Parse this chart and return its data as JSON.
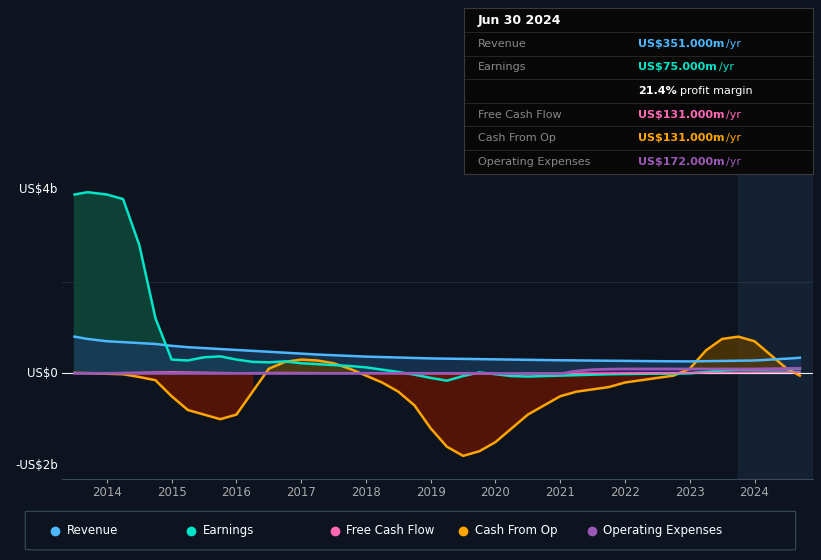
{
  "bg_color": "#0d1420",
  "plot_bg_color": "#0d1420",
  "grid_color": "#2a3a4a",
  "ylabel_top": "US$4b",
  "ylabel_zero": "US$0",
  "ylabel_bot": "-US$2b",
  "y_top": 4000,
  "y_zero": 0,
  "y_bot": -2000,
  "xlim": [
    2013.3,
    2024.9
  ],
  "ylim": [
    -2300,
    4600
  ],
  "xticks": [
    2014,
    2015,
    2016,
    2017,
    2018,
    2019,
    2020,
    2021,
    2022,
    2023,
    2024
  ],
  "revenue_color": "#4db8ff",
  "earnings_color": "#00e5c8",
  "fcf_color": "#ff69b4",
  "cashop_color": "#ffa500",
  "opex_color": "#9b59b6",
  "revenue_fill_color": "#1a3a5c",
  "earnings_fill_pos_color": "#0d4a3a",
  "earnings_fill_neg_color": "#5a1a1a",
  "cashop_fill_pos_color": "#5a3a00",
  "cashop_fill_neg_color": "#6b1500",
  "years": [
    2013.5,
    2013.7,
    2014.0,
    2014.25,
    2014.5,
    2014.75,
    2015.0,
    2015.25,
    2015.5,
    2015.75,
    2016.0,
    2016.25,
    2016.5,
    2016.75,
    2017.0,
    2017.25,
    2017.5,
    2017.75,
    2018.0,
    2018.25,
    2018.5,
    2018.75,
    2019.0,
    2019.25,
    2019.5,
    2019.75,
    2020.0,
    2020.25,
    2020.5,
    2020.75,
    2021.0,
    2021.25,
    2021.5,
    2021.75,
    2022.0,
    2022.25,
    2022.5,
    2022.75,
    2023.0,
    2023.25,
    2023.5,
    2023.75,
    2024.0,
    2024.25,
    2024.5,
    2024.7
  ],
  "revenue": [
    800,
    750,
    700,
    680,
    660,
    640,
    600,
    570,
    550,
    530,
    510,
    490,
    470,
    450,
    430,
    410,
    395,
    380,
    365,
    355,
    345,
    335,
    325,
    320,
    315,
    310,
    305,
    300,
    295,
    290,
    285,
    282,
    278,
    275,
    272,
    268,
    265,
    262,
    260,
    265,
    270,
    275,
    280,
    300,
    320,
    340
  ],
  "earnings": [
    3900,
    3950,
    3900,
    3800,
    2800,
    1200,
    300,
    280,
    350,
    370,
    300,
    250,
    240,
    260,
    220,
    200,
    180,
    160,
    130,
    80,
    30,
    -30,
    -100,
    -160,
    -60,
    20,
    -20,
    -60,
    -70,
    -60,
    -50,
    -40,
    -30,
    -20,
    -15,
    -10,
    -8,
    -5,
    0,
    30,
    60,
    80,
    80,
    85,
    90,
    95
  ],
  "fcf": [
    0,
    5,
    10,
    15,
    20,
    25,
    30,
    25,
    20,
    15,
    10,
    12,
    14,
    16,
    14,
    12,
    10,
    8,
    6,
    4,
    2,
    0,
    -2,
    -4,
    -6,
    -8,
    -10,
    -8,
    -6,
    -4,
    -2,
    0,
    2,
    4,
    6,
    8,
    10,
    12,
    14,
    16,
    18,
    20,
    22,
    25,
    28,
    30
  ],
  "cashop": [
    10,
    5,
    -10,
    -20,
    -80,
    -150,
    -500,
    -800,
    -900,
    -1000,
    -900,
    -400,
    100,
    250,
    300,
    280,
    220,
    100,
    -50,
    -200,
    -400,
    -700,
    -1200,
    -1600,
    -1800,
    -1700,
    -1500,
    -1200,
    -900,
    -700,
    -500,
    -400,
    -350,
    -300,
    -200,
    -150,
    -100,
    -50,
    100,
    500,
    750,
    800,
    700,
    400,
    100,
    -50
  ],
  "opex": [
    0,
    0,
    0,
    0,
    0,
    0,
    0,
    0,
    0,
    0,
    0,
    0,
    0,
    0,
    0,
    0,
    0,
    0,
    0,
    0,
    0,
    0,
    0,
    0,
    0,
    0,
    -5,
    -5,
    -5,
    -5,
    -10,
    50,
    80,
    90,
    95,
    95,
    95,
    95,
    95,
    95,
    95,
    95,
    95,
    100,
    105,
    110
  ],
  "info_box_rows": [
    {
      "label": "Jun 30 2024",
      "value": "",
      "label_color": "#ffffff",
      "value_color": "#ffffff",
      "bold_label": true,
      "bold_value": false,
      "is_title": true
    },
    {
      "label": "Revenue",
      "value": "US$351.000m /yr",
      "label_color": "#888888",
      "value_color": "#4db8ff",
      "bold_label": false,
      "bold_value": true,
      "is_title": false
    },
    {
      "label": "Earnings",
      "value": "US$75.000m /yr",
      "label_color": "#888888",
      "value_color": "#00e5c8",
      "bold_label": false,
      "bold_value": true,
      "is_title": false
    },
    {
      "label": "",
      "value": "21.4% profit margin",
      "label_color": "#888888",
      "value_color": "#ffffff",
      "bold_label": false,
      "bold_value": true,
      "is_title": false
    },
    {
      "label": "Free Cash Flow",
      "value": "US$131.000m /yr",
      "label_color": "#888888",
      "value_color": "#ff69b4",
      "bold_label": false,
      "bold_value": true,
      "is_title": false
    },
    {
      "label": "Cash From Op",
      "value": "US$131.000m /yr",
      "label_color": "#888888",
      "value_color": "#ffa500",
      "bold_label": false,
      "bold_value": true,
      "is_title": false
    },
    {
      "label": "Operating Expenses",
      "value": "US$172.000m /yr",
      "label_color": "#888888",
      "value_color": "#9b59b6",
      "bold_label": false,
      "bold_value": true,
      "is_title": false
    }
  ],
  "legend_items": [
    {
      "label": "Revenue",
      "color": "#4db8ff"
    },
    {
      "label": "Earnings",
      "color": "#00e5c8"
    },
    {
      "label": "Free Cash Flow",
      "color": "#ff69b4"
    },
    {
      "label": "Cash From Op",
      "color": "#ffa500"
    },
    {
      "label": "Operating Expenses",
      "color": "#9b59b6"
    }
  ],
  "shade_start": 2023.75,
  "shade_color": "#1a2a40"
}
